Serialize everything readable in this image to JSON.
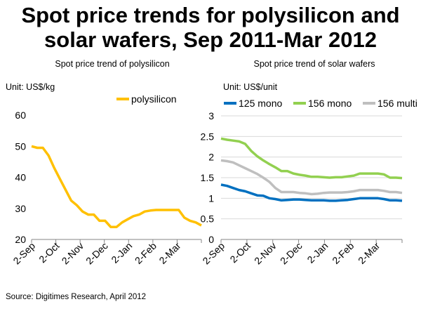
{
  "title": "Spot price trends for polysilicon and solar wafers, Sep 2011-Mar 2012",
  "source": "Source: Digitimes Research, April 2012",
  "colors": {
    "polysilicon": "#FFC000",
    "125 mono": "#0070C0",
    "156 mono": "#92D050",
    "156 multi": "#BFBFBF"
  },
  "chart_data": [
    {
      "type": "line",
      "title": "Spot price trend of polysilicon",
      "unit": "Unit: US$/kg",
      "ylim": [
        20,
        60
      ],
      "yticks": [
        20,
        30,
        40,
        50,
        60
      ],
      "xtick_labels": [
        "2-Sep",
        "2-Oct",
        "2-Nov",
        "2-Dec",
        "2-Jan",
        "2-Feb",
        "2-Mar"
      ],
      "grid": false,
      "legend": "top-right",
      "series": [
        {
          "name": "polysilicon",
          "values": [
            50,
            49.5,
            49.5,
            47,
            43,
            39.5,
            36,
            32.5,
            31,
            29,
            28,
            28,
            26,
            26,
            24,
            24,
            25.5,
            26.5,
            27.5,
            28,
            29,
            29.3,
            29.5,
            29.5,
            29.5,
            29.5,
            29.5,
            27,
            26,
            25.5,
            24.5
          ]
        }
      ]
    },
    {
      "type": "line",
      "title": "Spot price trend of solar wafers",
      "unit": "Unit: US$/unit",
      "ylim": [
        0,
        3
      ],
      "yticks": [
        0,
        0.5,
        1,
        1.5,
        2,
        2.5,
        3
      ],
      "xtick_labels": [
        "2-Sep",
        "2-Oct",
        "2-Nov",
        "2-Dec",
        "2-Jan",
        "2-Feb",
        "2-Mar"
      ],
      "grid": true,
      "legend": "top",
      "series": [
        {
          "name": "125 mono",
          "values": [
            1.33,
            1.3,
            1.25,
            1.2,
            1.17,
            1.12,
            1.07,
            1.06,
            1.0,
            0.98,
            0.95,
            0.96,
            0.97,
            0.97,
            0.96,
            0.95,
            0.95,
            0.95,
            0.94,
            0.94,
            0.95,
            0.96,
            0.98,
            1.0,
            1.0,
            1.0,
            1.0,
            0.98,
            0.95,
            0.95,
            0.94
          ]
        },
        {
          "name": "156 mono",
          "values": [
            2.45,
            2.42,
            2.4,
            2.38,
            2.32,
            2.15,
            2.02,
            1.92,
            1.83,
            1.75,
            1.66,
            1.66,
            1.6,
            1.57,
            1.55,
            1.52,
            1.52,
            1.51,
            1.5,
            1.51,
            1.51,
            1.53,
            1.55,
            1.6,
            1.6,
            1.6,
            1.6,
            1.58,
            1.5,
            1.5,
            1.49
          ]
        },
        {
          "name": "156 multi",
          "values": [
            1.92,
            1.9,
            1.87,
            1.8,
            1.73,
            1.66,
            1.59,
            1.5,
            1.4,
            1.25,
            1.15,
            1.15,
            1.15,
            1.13,
            1.12,
            1.1,
            1.11,
            1.13,
            1.14,
            1.14,
            1.14,
            1.15,
            1.17,
            1.2,
            1.2,
            1.2,
            1.2,
            1.18,
            1.15,
            1.15,
            1.13
          ]
        }
      ]
    }
  ]
}
